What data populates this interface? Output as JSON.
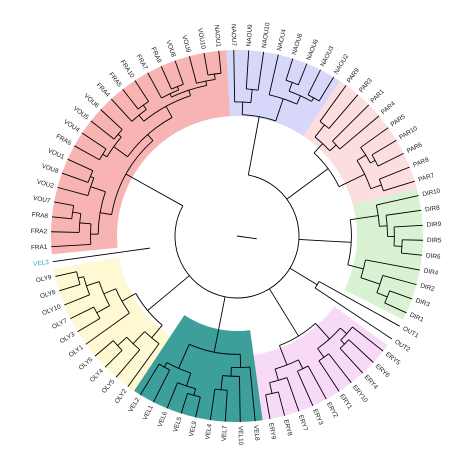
{
  "figure": {
    "type": "circular phylogenetic tree",
    "background": "#ffffff"
  },
  "clades": [
    {
      "name": "NAOU",
      "color": "#c9c9f7",
      "leaves": [
        "NAOU7",
        "NAOU9",
        "NAOU10",
        "NAOU4",
        "NAOU8",
        "NAOU6",
        "NAOU3",
        "NAOU2"
      ]
    },
    {
      "name": "PAR",
      "color": "#fbd3d3",
      "leaves": [
        "PAR9",
        "PAR3",
        "PAR1",
        "PAR4",
        "PAR5",
        "PAR10",
        "PAR6",
        "PAR8",
        "PAR7"
      ]
    },
    {
      "name": "DIR",
      "color": "#cdeec6",
      "leaves": [
        "DIR10",
        "DIR8",
        "DIR9",
        "DIR5",
        "DIR6",
        "DIR4",
        "DIR2",
        "DIR3",
        "DIR1"
      ]
    },
    {
      "name": "OUT",
      "color": "#ffffff",
      "leaves": [
        "OUT1",
        "OUT2"
      ]
    },
    {
      "name": "ERY",
      "color": "#f5cdf5",
      "leaves": [
        "ERY5",
        "ERY6",
        "ERY4",
        "ERY10",
        "ERY1",
        "ERY2",
        "ERY3",
        "ERY7",
        "ERY8",
        "ERY9"
      ]
    },
    {
      "name": "VEL",
      "color": "#1a8e88",
      "leaves": [
        "VEL8",
        "VEL10",
        "VEL7",
        "VEL4",
        "VEL9",
        "VEL5",
        "VEL6",
        "VEL1",
        "VEL2"
      ]
    },
    {
      "name": "OLY",
      "color": "#fdf6c4",
      "leaves": [
        "OLY2",
        "OLY5",
        "OLY4",
        "OLY6",
        "OLY1",
        "OLY3",
        "OLY7",
        "OLY10",
        "OLY8",
        "OLY9"
      ]
    },
    {
      "name": "FRA-VOU",
      "color": "#f59a9a",
      "leaves": [
        "FRA1",
        "FRA2",
        "FRA8",
        "VOU7",
        "VOU2",
        "VOU8",
        "VOU1",
        "FRA6",
        "VOU4",
        "VOU5",
        "VOU6",
        "FRA4",
        "FRA5",
        "FRA10",
        "FRA7",
        "FRA9",
        "VOU8",
        "VOU9",
        "VOU10",
        "NAOU1"
      ]
    }
  ],
  "outlier": {
    "label": "VEL3",
    "color": "#2aa7b8"
  },
  "edge_color": "#000000"
}
